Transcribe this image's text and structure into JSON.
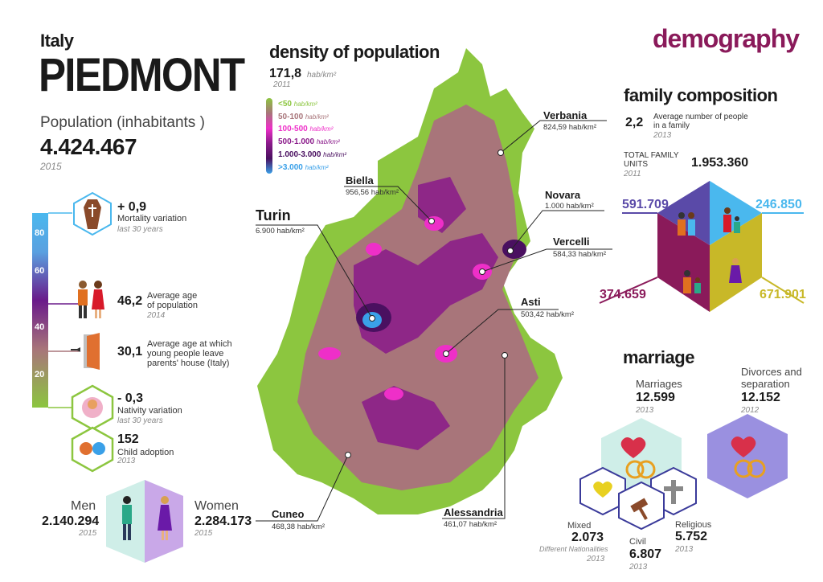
{
  "header": {
    "country": "Italy",
    "region": "PIEDMONT",
    "population_label": "Population (inhabitants )",
    "population_value": "4.424.467",
    "population_year": "2015",
    "section_title": "demography"
  },
  "scale": {
    "ticks": [
      "80",
      "60",
      "40",
      "20"
    ]
  },
  "stats": [
    {
      "value": "+ 0,9",
      "label": "Mortality variation",
      "year": "last 30 years"
    },
    {
      "value": "46,2",
      "label": "Average age of population",
      "year": "2014"
    },
    {
      "value": "30,1",
      "label": "Average age at which young people leave parents' house (Italy)",
      "year": ""
    },
    {
      "value": "- 0,3",
      "label": "Nativity variation",
      "year": "last 30 years"
    },
    {
      "value": "152",
      "label": "Child adoption",
      "year": "2013"
    }
  ],
  "gender": {
    "men_label": "Men",
    "men_value": "2.140.294",
    "men_year": "2015",
    "women_label": "Women",
    "women_value": "2.284.173",
    "women_year": "2015"
  },
  "density": {
    "title": "density of population",
    "value": "171,8",
    "unit": "hab/km²",
    "year": "2011",
    "legend": [
      {
        "label": "<50",
        "unit": "hab/km²",
        "color": "#8cc63f"
      },
      {
        "label": "50-100",
        "unit": "hab/km²",
        "color": "#a8757a"
      },
      {
        "label": "100-500",
        "unit": "hab/km²",
        "color": "#ee2fc8"
      },
      {
        "label": "500-1.000",
        "unit": "hab/km²",
        "color": "#8a1a8a"
      },
      {
        "label": "1.000-3.000",
        "unit": "hab/km²",
        "color": "#4a1060"
      },
      {
        "label": ">3.000",
        "unit": "hab/km²",
        "color": "#3aa0e8"
      }
    ]
  },
  "cities": [
    {
      "name": "Verbania",
      "density": "824,59 hab/km²"
    },
    {
      "name": "Biella",
      "density": "956,56 hab/km²"
    },
    {
      "name": "Novara",
      "density": "1.000 hab/km²"
    },
    {
      "name": "Turin",
      "density": "6.900 hab/km²"
    },
    {
      "name": "Vercelli",
      "density": "584,33 hab/km²"
    },
    {
      "name": "Asti",
      "density": "503,42 hab/km²"
    },
    {
      "name": "Cuneo",
      "density": "468,38 hab/km²"
    },
    {
      "name": "Alessandria",
      "density": "461,07 hab/km²"
    }
  ],
  "family": {
    "title": "family composition",
    "avg_value": "2,2",
    "avg_label": "Average number of people in a family",
    "avg_year": "2013",
    "total_label": "TOTAL FAMILY UNITS",
    "total_year": "2011",
    "total_value": "1.953.360",
    "q1": "591.709",
    "q2": "246.850",
    "q3": "374.659",
    "q4": "671.901"
  },
  "marriage": {
    "title": "marriage",
    "marriages_label": "Marriages",
    "marriages_value": "12.599",
    "marriages_year": "2013",
    "divorces_label": "Divorces and separation",
    "divorces_value": "12.152",
    "divorces_year": "2012",
    "mixed_label": "Mixed",
    "mixed_value": "2.073",
    "mixed_sub": "Different Nationalities",
    "mixed_year": "2013",
    "civil_label": "Civil",
    "civil_value": "6.807",
    "civil_year": "2013",
    "religious_label": "Religious",
    "religious_value": "5.752",
    "religious_year": "2013"
  }
}
